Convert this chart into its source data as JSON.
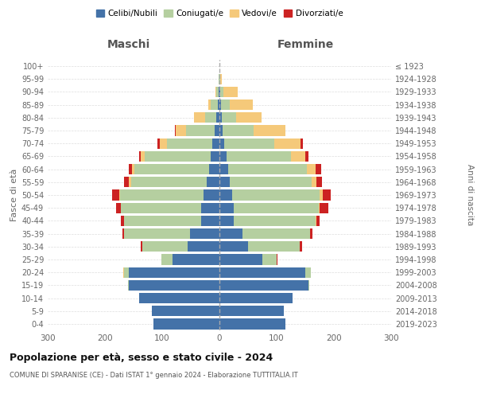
{
  "age_groups": [
    "0-4",
    "5-9",
    "10-14",
    "15-19",
    "20-24",
    "25-29",
    "30-34",
    "35-39",
    "40-44",
    "45-49",
    "50-54",
    "55-59",
    "60-64",
    "65-69",
    "70-74",
    "75-79",
    "80-84",
    "85-89",
    "90-94",
    "95-99",
    "100+"
  ],
  "birth_years": [
    "2019-2023",
    "2014-2018",
    "2009-2013",
    "2004-2008",
    "1999-2003",
    "1994-1998",
    "1989-1993",
    "1984-1988",
    "1979-1983",
    "1974-1978",
    "1969-1973",
    "1964-1968",
    "1959-1963",
    "1954-1958",
    "1949-1953",
    "1944-1948",
    "1939-1943",
    "1934-1938",
    "1929-1933",
    "1924-1928",
    "≤ 1923"
  ],
  "males": {
    "celibi": [
      115,
      118,
      140,
      158,
      158,
      82,
      55,
      52,
      32,
      32,
      28,
      22,
      18,
      15,
      12,
      8,
      5,
      3,
      2,
      0,
      0
    ],
    "coniugati": [
      0,
      0,
      0,
      2,
      8,
      20,
      80,
      115,
      135,
      140,
      145,
      132,
      130,
      115,
      80,
      50,
      20,
      12,
      3,
      1,
      0
    ],
    "vedovi": [
      0,
      0,
      0,
      0,
      2,
      0,
      0,
      0,
      0,
      0,
      2,
      4,
      5,
      8,
      12,
      18,
      20,
      5,
      2,
      0,
      0
    ],
    "divorziati": [
      0,
      0,
      0,
      0,
      0,
      0,
      3,
      2,
      5,
      8,
      12,
      8,
      5,
      2,
      4,
      2,
      0,
      0,
      0,
      0,
      0
    ]
  },
  "females": {
    "nubili": [
      115,
      112,
      128,
      155,
      150,
      75,
      50,
      40,
      25,
      25,
      22,
      18,
      15,
      12,
      8,
      5,
      4,
      3,
      2,
      0,
      0
    ],
    "coniugate": [
      0,
      0,
      0,
      2,
      10,
      25,
      90,
      118,
      143,
      148,
      153,
      143,
      138,
      113,
      88,
      55,
      25,
      15,
      5,
      2,
      0
    ],
    "vedove": [
      0,
      0,
      0,
      0,
      0,
      0,
      0,
      0,
      2,
      2,
      5,
      8,
      15,
      25,
      45,
      55,
      45,
      40,
      25,
      2,
      0
    ],
    "divorziate": [
      0,
      0,
      0,
      0,
      0,
      2,
      5,
      5,
      5,
      15,
      15,
      10,
      10,
      5,
      5,
      0,
      0,
      0,
      0,
      0,
      0
    ]
  },
  "colors": {
    "celibi": "#4472a8",
    "coniugati": "#b5cfa0",
    "vedovi": "#f5c97a",
    "divorziati": "#cc2222"
  },
  "xlim": 300,
  "title": "Popolazione per età, sesso e stato civile - 2024",
  "subtitle": "COMUNE DI SPARANISE (CE) - Dati ISTAT 1° gennaio 2024 - Elaborazione TUTTITALIA.IT",
  "ylabel": "Fasce di età",
  "ylabel_right": "Anni di nascita",
  "xlabel_left": "Maschi",
  "xlabel_right": "Femmine",
  "legend_labels": [
    "Celibi/Nubili",
    "Coniugati/e",
    "Vedovi/e",
    "Divorziati/e"
  ],
  "background_color": "#ffffff"
}
